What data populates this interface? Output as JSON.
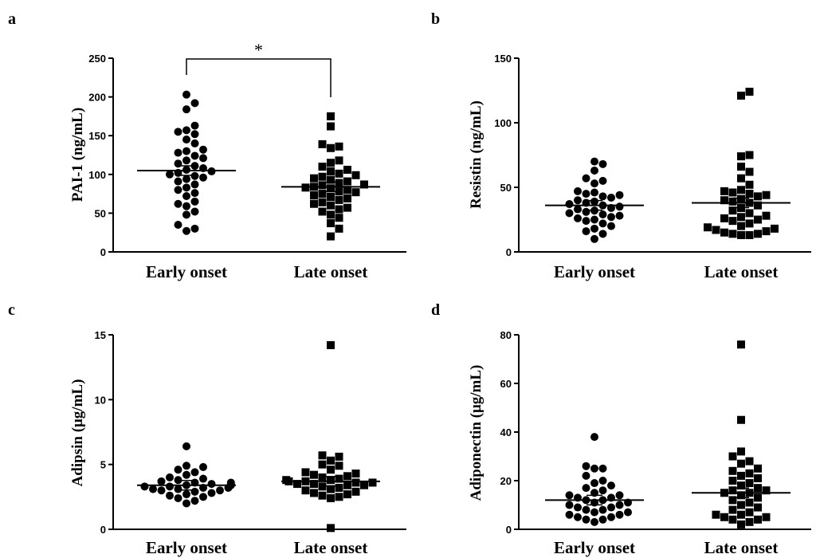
{
  "chart_data": [
    {
      "panel": "a",
      "type": "scatter",
      "ylabel": "PAI-1 (ng/mL)",
      "categories": [
        "Early onset",
        "Late onset"
      ],
      "yticks": [
        0,
        50,
        100,
        150,
        200,
        250
      ],
      "ylim": [
        0,
        250
      ],
      "means": [
        105,
        84
      ],
      "markers": [
        "circle",
        "square"
      ],
      "significance": "*",
      "series": [
        {
          "values": [
            203,
            192,
            184,
            163,
            157,
            155,
            152,
            145,
            140,
            132,
            130,
            128,
            124,
            121,
            118,
            114,
            111,
            108,
            106,
            104,
            102,
            100,
            98,
            96,
            94,
            91,
            87,
            83,
            80,
            76,
            72,
            65,
            62,
            59,
            52,
            48,
            35,
            30,
            27
          ]
        },
        {
          "values": [
            175,
            162,
            139,
            136,
            134,
            118,
            115,
            110,
            106,
            104,
            101,
            99,
            97,
            95,
            93,
            91,
            89,
            87,
            86,
            84,
            83,
            82,
            80,
            78,
            77,
            75,
            73,
            71,
            69,
            67,
            64,
            62,
            60,
            57,
            55,
            52,
            48,
            44,
            37,
            30,
            20
          ]
        }
      ]
    },
    {
      "panel": "b",
      "type": "scatter",
      "ylabel": "Resistin (ng/mL)",
      "categories": [
        "Early onset",
        "Late onset"
      ],
      "yticks": [
        0,
        50,
        100,
        150
      ],
      "ylim": [
        0,
        150
      ],
      "means": [
        36,
        38
      ],
      "markers": [
        "circle",
        "square"
      ],
      "series": [
        {
          "values": [
            70,
            68,
            63,
            57,
            55,
            53,
            47,
            46,
            45,
            44,
            43,
            42,
            40,
            39,
            38,
            37,
            36,
            35,
            34,
            33,
            32,
            31,
            30,
            29,
            28,
            27,
            26,
            25,
            24,
            22,
            20,
            18,
            16,
            14,
            10
          ]
        },
        {
          "values": [
            124,
            121,
            75,
            74,
            66,
            62,
            57,
            52,
            48,
            47,
            46,
            45,
            44,
            43,
            41,
            40,
            39,
            38,
            36,
            34,
            32,
            30,
            28,
            27,
            26,
            25,
            24,
            22,
            20,
            19,
            18,
            17,
            16,
            15,
            14,
            14,
            13,
            13
          ]
        }
      ]
    },
    {
      "panel": "c",
      "type": "scatter",
      "ylabel": "Adipsin (μg/mL)",
      "categories": [
        "Early onset",
        "Late onset"
      ],
      "yticks": [
        0,
        5,
        10,
        15
      ],
      "ylim": [
        0,
        15
      ],
      "means": [
        3.4,
        3.7
      ],
      "markers": [
        "circle",
        "square"
      ],
      "series": [
        {
          "values": [
            6.4,
            4.9,
            4.8,
            4.6,
            4.4,
            4.2,
            4.0,
            3.9,
            3.8,
            3.7,
            3.6,
            3.6,
            3.5,
            3.5,
            3.4,
            3.4,
            3.3,
            3.3,
            3.2,
            3.2,
            3.1,
            3.1,
            3.0,
            3.0,
            2.9,
            2.8,
            2.7,
            2.6,
            2.5,
            2.4,
            2.2,
            2.0
          ]
        },
        {
          "values": [
            14.2,
            5.7,
            5.6,
            5.3,
            5.0,
            4.9,
            4.6,
            4.4,
            4.3,
            4.2,
            4.1,
            4.0,
            3.9,
            3.8,
            3.8,
            3.7,
            3.7,
            3.6,
            3.6,
            3.5,
            3.5,
            3.4,
            3.4,
            3.3,
            3.2,
            3.1,
            3.0,
            2.9,
            2.8,
            2.7,
            2.6,
            2.5,
            2.4,
            0.1
          ]
        }
      ]
    },
    {
      "panel": "d",
      "type": "scatter",
      "ylabel": "Adiponectin (μg/mL)",
      "categories": [
        "Early onset",
        "Late onset"
      ],
      "yticks": [
        0,
        20,
        40,
        60,
        80
      ],
      "ylim": [
        0,
        80
      ],
      "means": [
        12,
        15
      ],
      "markers": [
        "circle",
        "square"
      ],
      "series": [
        {
          "values": [
            38,
            26,
            25,
            25,
            22,
            20,
            19,
            18,
            17,
            16,
            15,
            14,
            14,
            13,
            13,
            12,
            12,
            11,
            11,
            10,
            10,
            9,
            9,
            8,
            8,
            7,
            7,
            6,
            6,
            5,
            5,
            4,
            4,
            3
          ]
        },
        {
          "values": [
            76,
            45,
            32,
            30,
            28,
            27,
            25,
            24,
            23,
            22,
            21,
            20,
            19,
            18,
            17,
            16,
            16,
            15,
            15,
            14,
            13,
            12,
            11,
            10,
            9,
            8,
            7,
            6,
            6,
            5,
            5,
            4,
            4,
            3,
            2
          ]
        }
      ]
    }
  ]
}
